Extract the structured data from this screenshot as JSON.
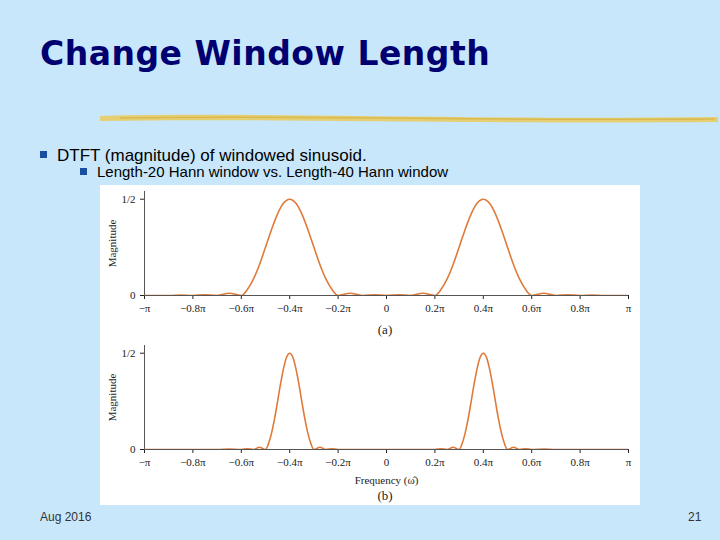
{
  "slide": {
    "title": "Change Window Length",
    "bullets": [
      "DTFT (magnitude) of windowed sinusoid.",
      "Length-20 Hann window vs. Length-40 Hann window"
    ],
    "footer": "Aug 2016",
    "page_number": "21"
  },
  "chart_data": [
    {
      "type": "line",
      "caption": "(a)",
      "ylabel": "Magnitude",
      "x": [
        -1,
        -0.9,
        -0.85,
        -0.8,
        -0.75,
        -0.7,
        -0.65,
        -0.6,
        -0.575,
        -0.55,
        -0.525,
        -0.5,
        -0.475,
        -0.45,
        -0.425,
        -0.4,
        -0.375,
        -0.35,
        -0.325,
        -0.3,
        -0.275,
        -0.25,
        -0.225,
        -0.2,
        -0.15,
        -0.1,
        -0.05,
        0,
        0.05,
        0.1,
        0.15,
        0.2,
        0.225,
        0.25,
        0.275,
        0.3,
        0.325,
        0.35,
        0.375,
        0.4,
        0.425,
        0.45,
        0.475,
        0.5,
        0.525,
        0.55,
        0.575,
        0.6,
        0.65,
        0.7,
        0.75,
        0.8,
        0.85,
        0.9,
        1
      ],
      "series": [
        {
          "color": "#e07a3a",
          "values": [
            0,
            0,
            0.002,
            0,
            0.004,
            0,
            0.012,
            0,
            0.031,
            0.085,
            0.16,
            0.25,
            0.343,
            0.424,
            0.48,
            0.5,
            0.48,
            0.424,
            0.343,
            0.25,
            0.16,
            0.085,
            0.031,
            0,
            0.012,
            0,
            0.004,
            0,
            0.004,
            0,
            0.012,
            0,
            0.031,
            0.085,
            0.16,
            0.25,
            0.343,
            0.424,
            0.48,
            0.5,
            0.48,
            0.424,
            0.343,
            0.25,
            0.16,
            0.085,
            0.031,
            0,
            0.012,
            0,
            0.004,
            0,
            0.002,
            0,
            0
          ]
        }
      ],
      "xlim": [
        -1,
        1
      ],
      "xticks": [
        {
          "value": -1,
          "label": "−π"
        },
        {
          "value": -0.8,
          "label": "−0.8π"
        },
        {
          "value": -0.6,
          "label": "−0.6π"
        },
        {
          "value": -0.4,
          "label": "−0.4π"
        },
        {
          "value": -0.2,
          "label": "−0.2π"
        },
        0,
        {
          "value": 0.2,
          "label": "0.2π"
        },
        {
          "value": 0.4,
          "label": "0.4π"
        },
        {
          "value": 0.6,
          "label": "0.6π"
        },
        {
          "value": 0.8,
          "label": "0.8π"
        },
        {
          "value": 1,
          "label": "π"
        }
      ],
      "ylim": [
        0,
        0.54
      ],
      "yticks": [
        0,
        {
          "value": 0.5,
          "label": "1/2"
        }
      ]
    },
    {
      "type": "line",
      "caption": "(b)",
      "ylabel": "Magnitude",
      "xlabel": "Frequency (ω̂)",
      "x": [
        -1,
        -0.9,
        -0.8,
        -0.7,
        -0.65,
        -0.6,
        -0.575,
        -0.55,
        -0.525,
        -0.5,
        -0.4875,
        -0.475,
        -0.4625,
        -0.45,
        -0.4375,
        -0.425,
        -0.4125,
        -0.4,
        -0.3875,
        -0.375,
        -0.3625,
        -0.35,
        -0.3375,
        -0.325,
        -0.3125,
        -0.3,
        -0.275,
        -0.25,
        -0.225,
        -0.2,
        -0.1,
        0,
        0.1,
        0.2,
        0.225,
        0.25,
        0.275,
        0.3,
        0.3125,
        0.325,
        0.3375,
        0.35,
        0.3625,
        0.375,
        0.3875,
        0.4,
        0.4125,
        0.425,
        0.4375,
        0.45,
        0.4625,
        0.475,
        0.4875,
        0.5,
        0.525,
        0.55,
        0.575,
        0.6,
        0.65,
        0.7,
        0.8,
        0.9,
        1
      ],
      "series": [
        {
          "color": "#e07a3a",
          "values": [
            0,
            0,
            0,
            0,
            0.002,
            0,
            0.004,
            0,
            0.012,
            0,
            0.031,
            0.085,
            0.16,
            0.25,
            0.343,
            0.424,
            0.48,
            0.5,
            0.48,
            0.424,
            0.343,
            0.25,
            0.16,
            0.085,
            0.031,
            0,
            0.012,
            0,
            0.004,
            0,
            0,
            0,
            0,
            0,
            0.004,
            0,
            0.012,
            0,
            0.031,
            0.085,
            0.16,
            0.25,
            0.343,
            0.424,
            0.48,
            0.5,
            0.48,
            0.424,
            0.343,
            0.25,
            0.16,
            0.085,
            0.031,
            0,
            0.012,
            0,
            0.004,
            0,
            0.002,
            0,
            0,
            0,
            0
          ]
        }
      ],
      "xlim": [
        -1,
        1
      ],
      "xticks": [
        {
          "value": -1,
          "label": "−π"
        },
        {
          "value": -0.8,
          "label": "−0.8π"
        },
        {
          "value": -0.6,
          "label": "−0.6π"
        },
        {
          "value": -0.4,
          "label": "−0.4π"
        },
        {
          "value": -0.2,
          "label": "−0.2π"
        },
        0,
        {
          "value": 0.2,
          "label": "0.2π"
        },
        {
          "value": 0.4,
          "label": "0.4π"
        },
        {
          "value": 0.6,
          "label": "0.6π"
        },
        {
          "value": 0.8,
          "label": "0.8π"
        },
        {
          "value": 1,
          "label": "π"
        }
      ],
      "ylim": [
        0,
        0.54
      ],
      "yticks": [
        0,
        {
          "value": 0.5,
          "label": "1/2"
        }
      ]
    }
  ]
}
